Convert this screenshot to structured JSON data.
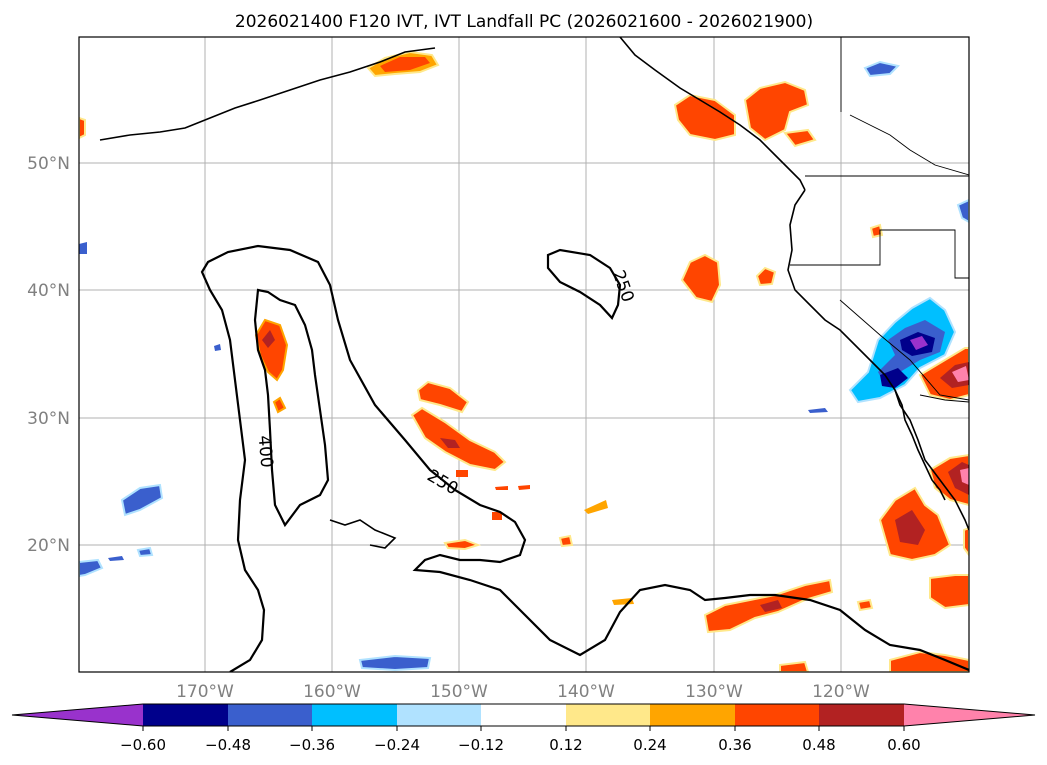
{
  "title": "2026021400 F120 IVT, IVT Landfall PC (2026021600 - 2026021900)",
  "lat_labels": [
    "50°N",
    "40°N",
    "30°N",
    "20°N"
  ],
  "lon_labels": [
    "170°W",
    "160°W",
    "150°W",
    "140°W",
    "130°W",
    "120°W"
  ],
  "contours": {
    "label_250": "250",
    "label_400": "400"
  },
  "colorbar": {
    "ticks": [
      "−0.60",
      "−0.48",
      "−0.36",
      "−0.24",
      "−0.12",
      "0.12",
      "0.24",
      "0.36",
      "0.48",
      "0.60"
    ],
    "colors": {
      "neg_extend": "#9932CC",
      "neg_060": "#00008B",
      "neg_048": "#3A5FCD",
      "neg_036": "#00BFFF",
      "neg_024": "#B0E2FF",
      "neutral": "#FFFFFF",
      "pos_012": "#FFE88A",
      "pos_024": "#FFA500",
      "pos_036": "#FF4500",
      "pos_048": "#B22222",
      "pos_extend": "#FF82AB"
    }
  }
}
